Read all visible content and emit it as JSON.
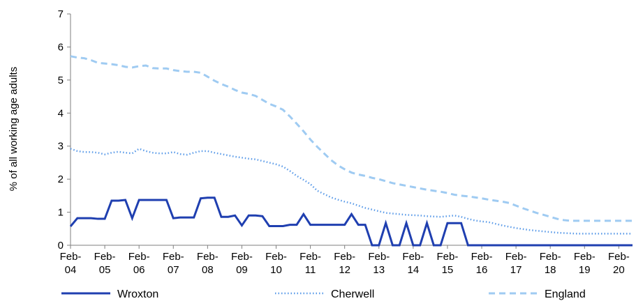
{
  "chart_data": {
    "type": "line",
    "title": "",
    "xlabel": "",
    "ylabel": "% of all working age adults",
    "ylim": [
      0,
      7
    ],
    "yticks": [
      "0",
      "1",
      "2",
      "3",
      "4",
      "5",
      "6",
      "7"
    ],
    "xlim": [
      0,
      16.4
    ],
    "xtick_labels": [
      [
        "Feb-",
        "04"
      ],
      [
        "Feb-",
        "05"
      ],
      [
        "Feb-",
        "06"
      ],
      [
        "Feb-",
        "07"
      ],
      [
        "Feb-",
        "08"
      ],
      [
        "Feb-",
        "09"
      ],
      [
        "Feb-",
        "10"
      ],
      [
        "Feb-",
        "11"
      ],
      [
        "Feb-",
        "12"
      ],
      [
        "Feb-",
        "13"
      ],
      [
        "Feb-",
        "14"
      ],
      [
        "Feb-",
        "15"
      ],
      [
        "Feb-",
        "16"
      ],
      [
        "Feb-",
        "17"
      ],
      [
        "Feb-",
        "18"
      ],
      [
        "Feb-",
        "19"
      ],
      [
        "Feb-",
        "20"
      ]
    ],
    "grid": false,
    "legend_position": "bottom",
    "x": [
      0,
      0.2,
      0.4,
      0.6,
      0.8,
      1,
      1.2,
      1.4,
      1.6,
      1.8,
      2,
      2.2,
      2.4,
      2.6,
      2.8,
      3,
      3.2,
      3.4,
      3.6,
      3.8,
      4,
      4.2,
      4.4,
      4.6,
      4.8,
      5,
      5.2,
      5.4,
      5.6,
      5.8,
      6,
      6.2,
      6.4,
      6.6,
      6.8,
      7,
      7.2,
      7.4,
      7.6,
      7.8,
      8,
      8.2,
      8.4,
      8.6,
      8.8,
      9,
      9.2,
      9.4,
      9.6,
      9.8,
      10,
      10.2,
      10.4,
      10.6,
      10.8,
      11,
      11.2,
      11.4,
      11.6,
      11.8,
      12,
      12.2,
      12.4,
      12.6,
      12.8,
      13,
      13.2,
      13.4,
      13.6,
      13.8,
      14,
      14.2,
      14.4,
      14.6,
      14.8,
      15,
      15.2,
      15.4,
      15.6,
      15.8,
      16,
      16.2,
      16.4
    ],
    "series": [
      {
        "name": "Wroxton",
        "color": "#1f3fb0",
        "style": "solid",
        "values": [
          0.57,
          0.82,
          0.82,
          0.82,
          0.8,
          0.8,
          1.35,
          1.35,
          1.37,
          0.82,
          1.37,
          1.37,
          1.37,
          1.37,
          1.37,
          0.82,
          0.84,
          0.84,
          0.84,
          1.42,
          1.44,
          1.44,
          0.86,
          0.86,
          0.9,
          0.6,
          0.9,
          0.9,
          0.88,
          0.58,
          0.58,
          0.58,
          0.62,
          0.62,
          0.94,
          0.62,
          0.62,
          0.62,
          0.62,
          0.62,
          0.62,
          0.94,
          0.62,
          0.62,
          0,
          0,
          0.67,
          0,
          0,
          0.67,
          0,
          0,
          0.67,
          0,
          0,
          0.67,
          0.67,
          0.67,
          0,
          0,
          0,
          0,
          0,
          0,
          0,
          0,
          0,
          0,
          0,
          0,
          0,
          0,
          0,
          0,
          0,
          0,
          0,
          0,
          0,
          0,
          0,
          0,
          0
        ]
      },
      {
        "name": "Cherwell",
        "color": "#5b9be8",
        "style": "dotted",
        "values": [
          2.92,
          2.85,
          2.82,
          2.82,
          2.8,
          2.75,
          2.8,
          2.83,
          2.8,
          2.78,
          2.92,
          2.85,
          2.8,
          2.78,
          2.78,
          2.82,
          2.76,
          2.74,
          2.8,
          2.85,
          2.85,
          2.8,
          2.76,
          2.72,
          2.68,
          2.65,
          2.62,
          2.6,
          2.55,
          2.5,
          2.45,
          2.38,
          2.25,
          2.1,
          1.98,
          1.85,
          1.65,
          1.55,
          1.45,
          1.38,
          1.32,
          1.27,
          1.2,
          1.13,
          1.08,
          1.03,
          0.98,
          0.96,
          0.94,
          0.92,
          0.91,
          0.9,
          0.88,
          0.87,
          0.86,
          0.88,
          0.9,
          0.86,
          0.8,
          0.75,
          0.72,
          0.7,
          0.65,
          0.6,
          0.56,
          0.52,
          0.49,
          0.46,
          0.44,
          0.42,
          0.4,
          0.38,
          0.37,
          0.36,
          0.35,
          0.35,
          0.35,
          0.35,
          0.35,
          0.35,
          0.35,
          0.35,
          0.35
        ]
      },
      {
        "name": "England",
        "color": "#9fcbf2",
        "style": "dashed",
        "values": [
          5.72,
          5.68,
          5.66,
          5.6,
          5.52,
          5.5,
          5.48,
          5.45,
          5.4,
          5.38,
          5.42,
          5.44,
          5.36,
          5.35,
          5.35,
          5.3,
          5.27,
          5.25,
          5.25,
          5.22,
          5.1,
          4.98,
          4.88,
          4.8,
          4.7,
          4.62,
          4.58,
          4.52,
          4.4,
          4.28,
          4.2,
          4.1,
          3.9,
          3.68,
          3.45,
          3.2,
          2.98,
          2.78,
          2.58,
          2.42,
          2.3,
          2.2,
          2.14,
          2.1,
          2.04,
          2.0,
          1.94,
          1.88,
          1.84,
          1.8,
          1.76,
          1.72,
          1.68,
          1.65,
          1.62,
          1.58,
          1.53,
          1.5,
          1.48,
          1.45,
          1.42,
          1.38,
          1.35,
          1.32,
          1.28,
          1.2,
          1.12,
          1.05,
          0.98,
          0.92,
          0.86,
          0.8,
          0.76,
          0.74,
          0.74,
          0.74,
          0.74,
          0.74,
          0.74,
          0.74,
          0.74,
          0.74,
          0.74
        ]
      }
    ]
  }
}
